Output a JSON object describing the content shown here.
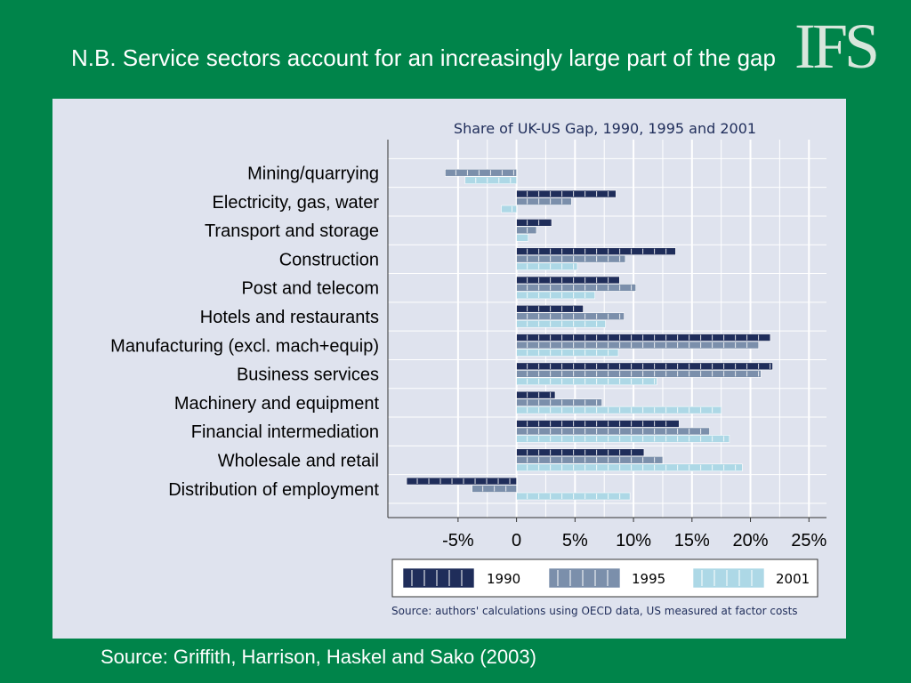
{
  "slide": {
    "title": "N.B. Service sectors account for an increasingly large part of the gap",
    "logo_text": "IFS",
    "source": "Source: Griffith, Harrison, Haskel and Sako (2003)"
  },
  "colors": {
    "background": "#00844a",
    "panel": "#dfe3ee",
    "series_1990": "#1f2d5a",
    "series_1995": "#7b8fab",
    "series_2001": "#add8e6"
  },
  "chart_data": {
    "type": "bar",
    "orientation": "horizontal",
    "title": "Share of UK-US Gap, 1990, 1995 and 2001",
    "note": "Source: authors' calculations using OECD data, US measured at factor costs",
    "categories": [
      "Mining/quarrying",
      "Electricity, gas, water",
      "Transport and storage",
      "Construction",
      "Post and telecom",
      "Hotels and restaurants",
      "Manufacturing (excl. mach+equip)",
      "Business services",
      "Machinery and equipment",
      "Financial intermediation",
      "Wholesale and retail",
      "Distribution of employment"
    ],
    "series": [
      {
        "name": "1990",
        "color": "#1f2d5a",
        "values": [
          0,
          8.5,
          3,
          13.6,
          8.8,
          5.7,
          21.7,
          21.9,
          3.3,
          13.9,
          10.9,
          -9.4
        ]
      },
      {
        "name": "1995",
        "color": "#7b8fab",
        "values": [
          -6.1,
          4.7,
          1.7,
          9.3,
          10.2,
          9.2,
          20.7,
          20.9,
          7.3,
          16.5,
          12.5,
          -3.8
        ]
      },
      {
        "name": "2001",
        "color": "#add8e6",
        "values": [
          -4.4,
          -1.3,
          1,
          5.2,
          6.7,
          7.6,
          8.7,
          12,
          17.5,
          18.2,
          19.3,
          9.7
        ]
      }
    ],
    "xlim": [
      -11,
      26.5
    ],
    "xticks": [
      -5,
      0,
      5,
      10,
      15,
      20,
      25
    ],
    "xtick_labels": [
      "-5%",
      "0",
      "5%",
      "10%",
      "15%",
      "20%",
      "25%"
    ],
    "grid": true,
    "legend_position": "bottom"
  }
}
